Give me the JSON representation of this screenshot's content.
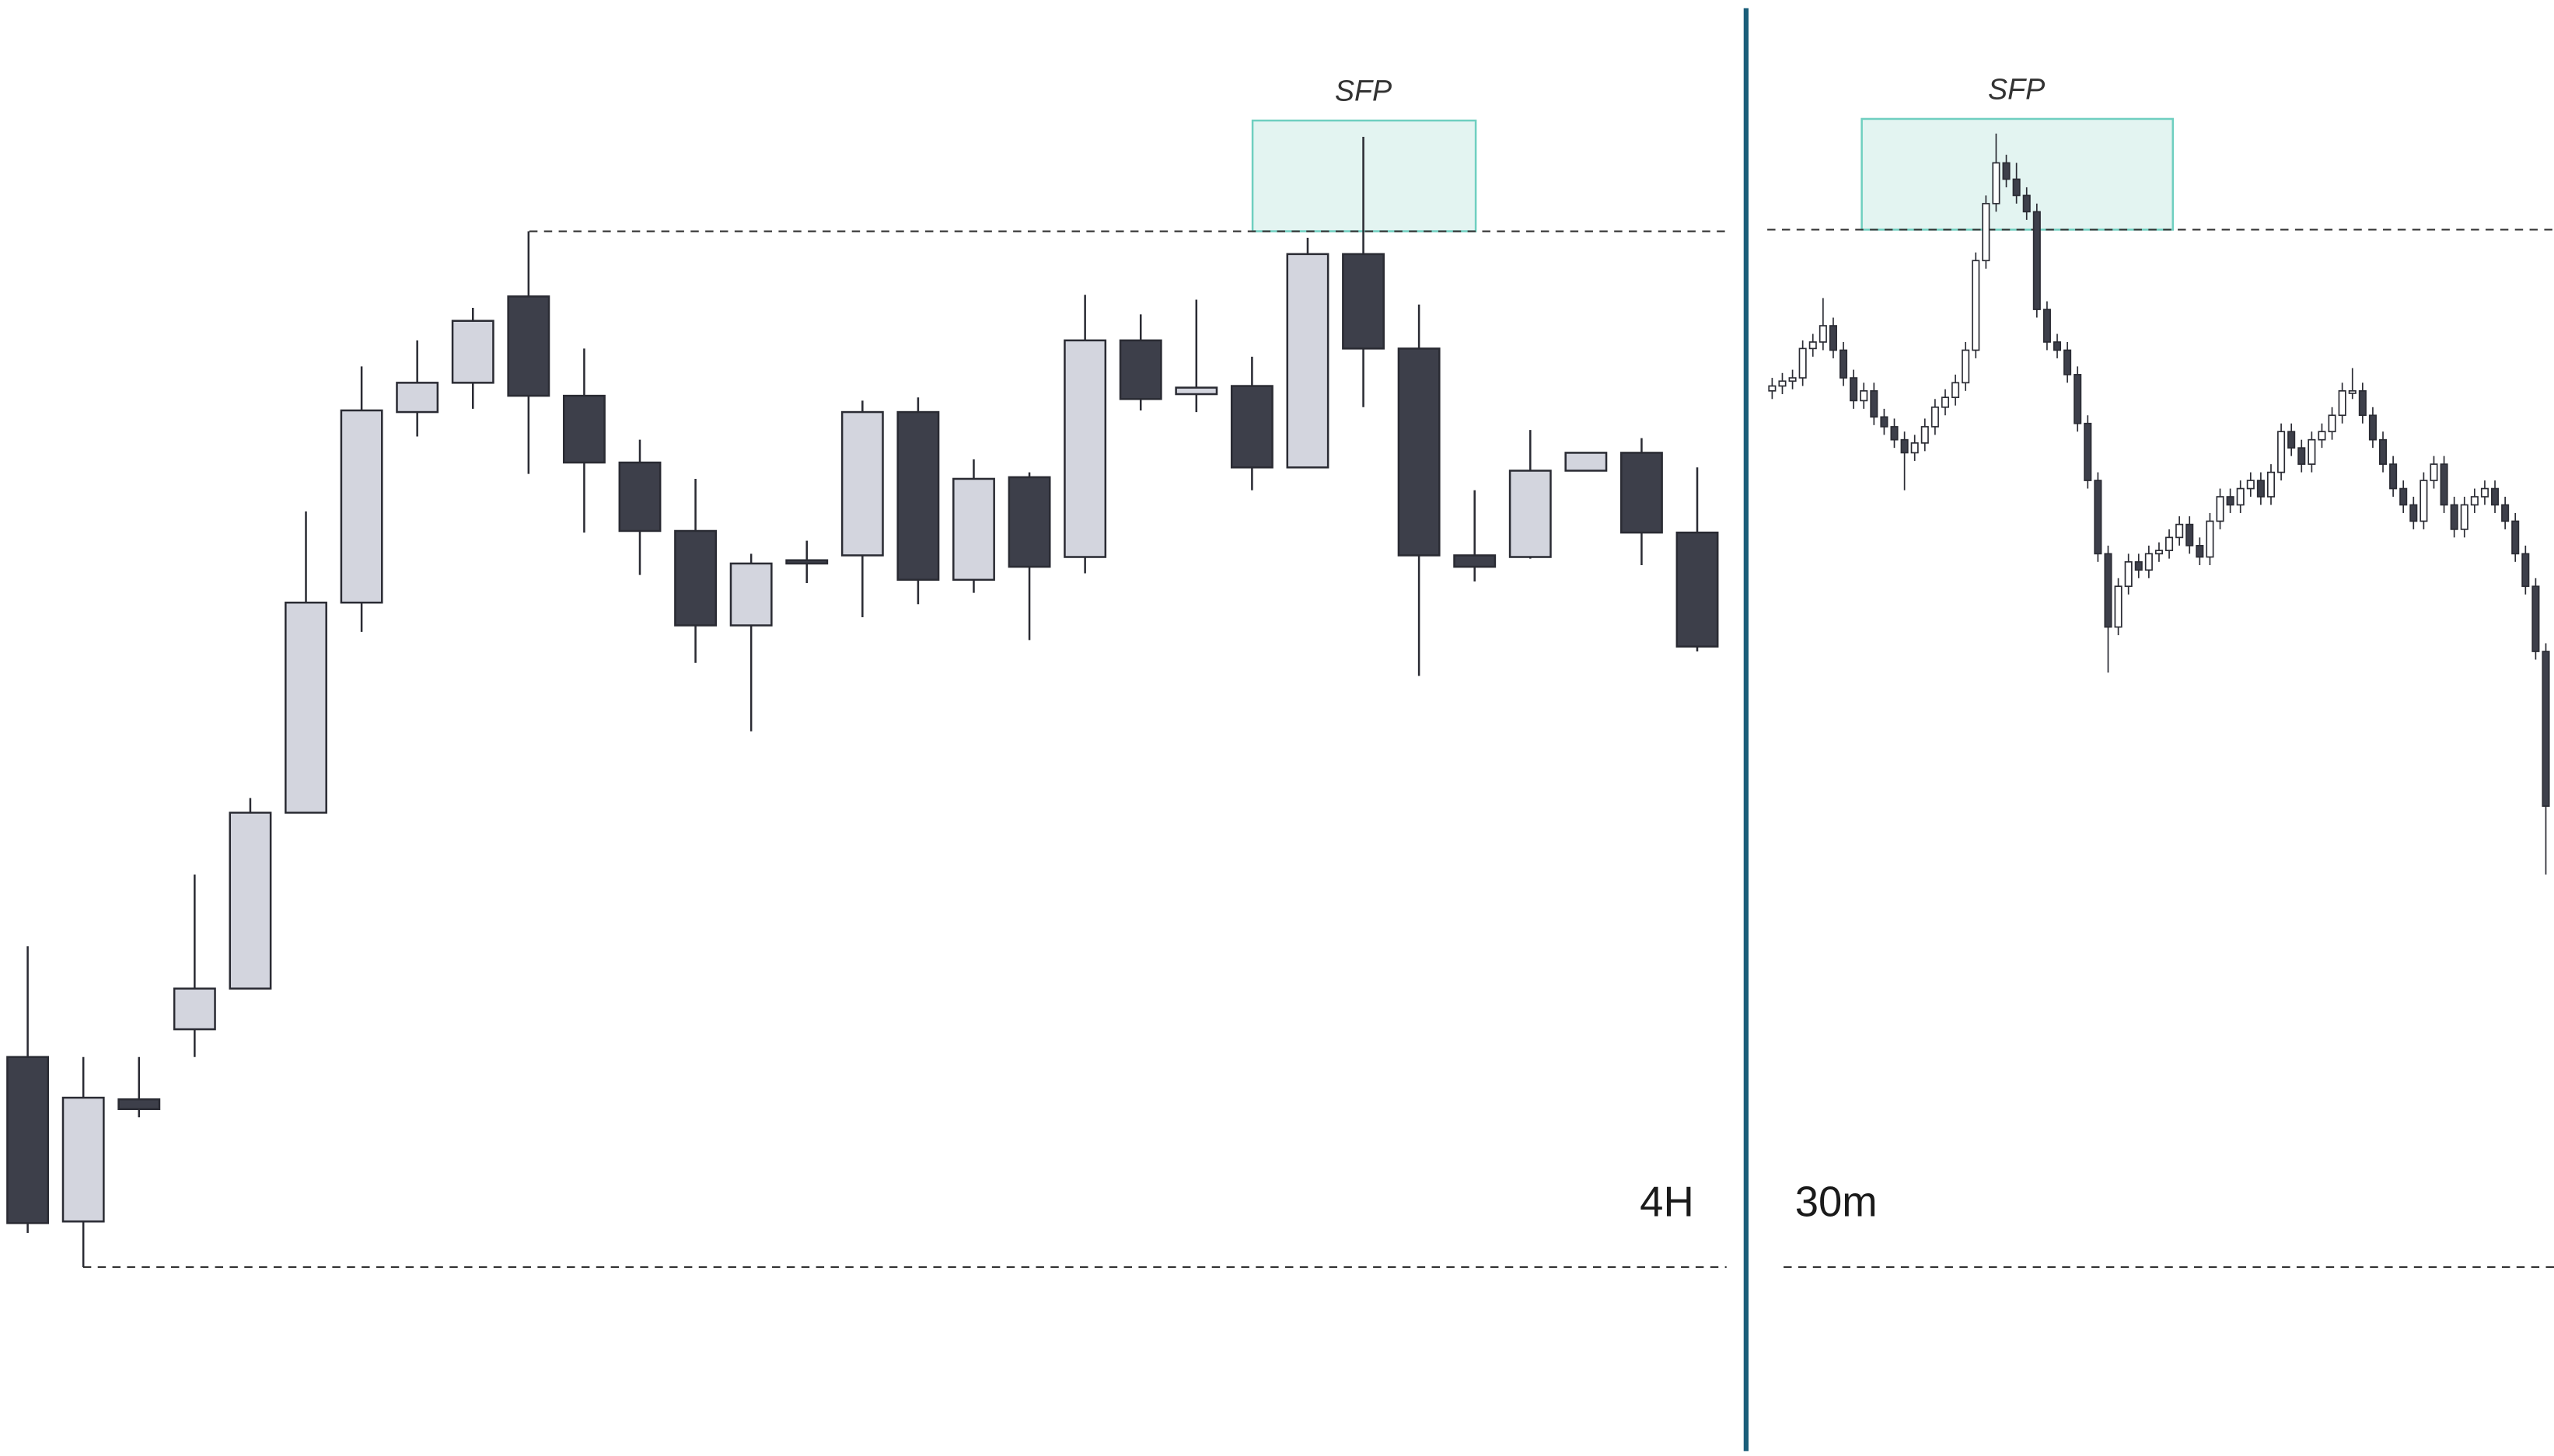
{
  "chart_data": [
    {
      "type": "candlestick",
      "label": "4H",
      "annotation": "SFP",
      "ylim": [
        0,
        893
      ],
      "up_color": "#d3d5de",
      "down_color": "#3d3f4a",
      "edge_color": "#2a2b33",
      "ohlc": [
        [
          244,
          312,
          136,
          142
        ],
        [
          143,
          244,
          115,
          219
        ],
        [
          218,
          244,
          207,
          212
        ],
        [
          261,
          356,
          244,
          286
        ],
        [
          286,
          403,
          286,
          394
        ],
        [
          394,
          579,
          394,
          523
        ],
        [
          523,
          668,
          505,
          641
        ],
        [
          640,
          684,
          625,
          658
        ],
        [
          658,
          704,
          642,
          696
        ],
        [
          711,
          751,
          602,
          650
        ],
        [
          650,
          679,
          566,
          609
        ],
        [
          609,
          623,
          540,
          567
        ],
        [
          567,
          599,
          486,
          509
        ],
        [
          509,
          553,
          444,
          547
        ],
        [
          549,
          561,
          535,
          547
        ],
        [
          552,
          647,
          514,
          640
        ],
        [
          640,
          649,
          522,
          537
        ],
        [
          537,
          611,
          529,
          599
        ],
        [
          600,
          603,
          500,
          545
        ],
        [
          551,
          712,
          541,
          684
        ],
        [
          684,
          700,
          641,
          648
        ],
        [
          651,
          709,
          640,
          655
        ],
        [
          656,
          674,
          592,
          606
        ],
        [
          606,
          747,
          606,
          737
        ],
        [
          737,
          809,
          643,
          679
        ],
        [
          679,
          706,
          478,
          552
        ],
        [
          552,
          592,
          536,
          545
        ],
        [
          551,
          629,
          550,
          604
        ],
        [
          604,
          615,
          604,
          615
        ],
        [
          615,
          624,
          546,
          566
        ],
        [
          566,
          606,
          493,
          496
        ]
      ]
    },
    {
      "type": "candlestick",
      "label": "30m",
      "annotation": "SFP",
      "ylim": [
        0,
        893
      ],
      "up_color": "#ffffff",
      "down_color": "#3d3f4a",
      "edge_color": "#2a2b33",
      "ohlc": [
        [
          653,
          661,
          648,
          656
        ],
        [
          656,
          664,
          651,
          659
        ],
        [
          659,
          666,
          654,
          661
        ],
        [
          661,
          684,
          656,
          679
        ],
        [
          679,
          688,
          674,
          683
        ],
        [
          683,
          710,
          678,
          693
        ],
        [
          693,
          698,
          673,
          678
        ],
        [
          678,
          683,
          656,
          661
        ],
        [
          661,
          666,
          642,
          647
        ],
        [
          647,
          658,
          642,
          653
        ],
        [
          653,
          658,
          632,
          637
        ],
        [
          637,
          642,
          626,
          631
        ],
        [
          631,
          636,
          618,
          623
        ],
        [
          623,
          628,
          592,
          615
        ],
        [
          615,
          626,
          610,
          621
        ],
        [
          621,
          636,
          616,
          631
        ],
        [
          631,
          648,
          626,
          643
        ],
        [
          643,
          654,
          638,
          649
        ],
        [
          649,
          663,
          644,
          658
        ],
        [
          658,
          683,
          653,
          678
        ],
        [
          678,
          738,
          673,
          733
        ],
        [
          733,
          773,
          728,
          768
        ],
        [
          768,
          811,
          763,
          793
        ],
        [
          793,
          798,
          778,
          783
        ],
        [
          783,
          793,
          768,
          773
        ],
        [
          773,
          778,
          758,
          763
        ],
        [
          763,
          768,
          698,
          703
        ],
        [
          703,
          708,
          678,
          683
        ],
        [
          683,
          688,
          673,
          678
        ],
        [
          678,
          683,
          658,
          663
        ],
        [
          663,
          668,
          628,
          633
        ],
        [
          633,
          638,
          593,
          598
        ],
        [
          598,
          603,
          548,
          553
        ],
        [
          553,
          558,
          480,
          508
        ],
        [
          508,
          538,
          503,
          533
        ],
        [
          533,
          553,
          528,
          548
        ],
        [
          548,
          553,
          538,
          543
        ],
        [
          543,
          558,
          538,
          553
        ],
        [
          553,
          560,
          548,
          555
        ],
        [
          555,
          568,
          550,
          563
        ],
        [
          563,
          576,
          558,
          571
        ],
        [
          571,
          576,
          553,
          558
        ],
        [
          558,
          563,
          546,
          551
        ],
        [
          551,
          578,
          546,
          573
        ],
        [
          573,
          593,
          568,
          588
        ],
        [
          588,
          593,
          578,
          583
        ],
        [
          583,
          598,
          578,
          593
        ],
        [
          593,
          603,
          588,
          598
        ],
        [
          598,
          603,
          583,
          588
        ],
        [
          588,
          608,
          583,
          603
        ],
        [
          603,
          633,
          598,
          628
        ],
        [
          628,
          633,
          613,
          618
        ],
        [
          618,
          623,
          603,
          608
        ],
        [
          608,
          628,
          603,
          623
        ],
        [
          623,
          633,
          618,
          628
        ],
        [
          628,
          643,
          623,
          638
        ],
        [
          638,
          658,
          633,
          653
        ],
        [
          653,
          667,
          648,
          653
        ],
        [
          653,
          658,
          633,
          638
        ],
        [
          638,
          643,
          618,
          623
        ],
        [
          623,
          628,
          603,
          608
        ],
        [
          608,
          613,
          588,
          593
        ],
        [
          593,
          598,
          578,
          583
        ],
        [
          583,
          588,
          568,
          573
        ],
        [
          573,
          603,
          568,
          598
        ],
        [
          598,
          613,
          593,
          608
        ],
        [
          608,
          613,
          578,
          583
        ],
        [
          583,
          588,
          563,
          568
        ],
        [
          568,
          588,
          563,
          583
        ],
        [
          583,
          593,
          578,
          588
        ],
        [
          588,
          598,
          583,
          593
        ],
        [
          593,
          598,
          578,
          583
        ],
        [
          583,
          588,
          568,
          573
        ],
        [
          573,
          578,
          548,
          553
        ],
        [
          553,
          558,
          528,
          533
        ],
        [
          533,
          538,
          488,
          493
        ],
        [
          493,
          498,
          356,
          398
        ]
      ]
    }
  ]
}
